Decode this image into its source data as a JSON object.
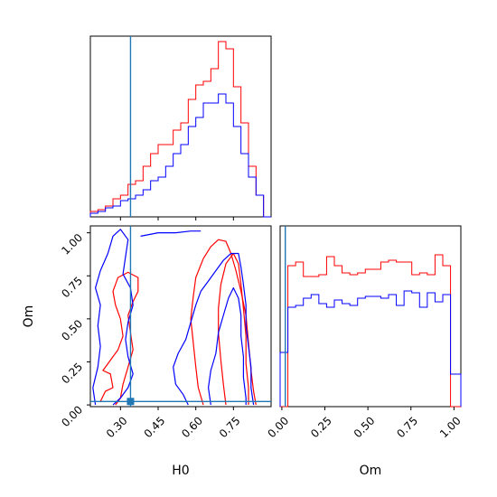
{
  "chart_data": {
    "type": "corner",
    "truth": {
      "H0": 0.34,
      "Om": 0.02
    },
    "parameters": [
      {
        "key": "H0",
        "label": "H0",
        "range": [
          0.18,
          0.9
        ],
        "ticks": [
          "0.30",
          "0.45",
          "0.60",
          "0.75"
        ],
        "tick_values": [
          0.3,
          0.45,
          0.6,
          0.75
        ]
      },
      {
        "key": "Om",
        "label": "Om",
        "range": [
          -0.01,
          1.04
        ],
        "ticks": [
          "0.00",
          "0.25",
          "0.50",
          "0.75",
          "1.00"
        ],
        "tick_values": [
          0.0,
          0.25,
          0.5,
          0.75,
          1.0
        ]
      }
    ],
    "hist_H0": {
      "bin_edges": [
        0.18,
        0.21,
        0.24,
        0.27,
        0.3,
        0.33,
        0.36,
        0.39,
        0.42,
        0.45,
        0.48,
        0.51,
        0.54,
        0.57,
        0.6,
        0.63,
        0.66,
        0.69,
        0.72,
        0.75,
        0.78,
        0.81,
        0.84,
        0.87,
        0.9
      ],
      "series": [
        {
          "color": "#ff0000",
          "values": [
            0.03,
            0.04,
            0.06,
            0.1,
            0.12,
            0.18,
            0.2,
            0.28,
            0.35,
            0.4,
            0.4,
            0.48,
            0.52,
            0.65,
            0.73,
            0.75,
            0.82,
            0.97,
            0.93,
            0.72,
            0.52,
            0.28,
            0.12,
            0.0
          ]
        },
        {
          "color": "#0000ff",
          "values": [
            0.02,
            0.03,
            0.05,
            0.06,
            0.09,
            0.1,
            0.12,
            0.15,
            0.2,
            0.22,
            0.28,
            0.35,
            0.4,
            0.5,
            0.55,
            0.63,
            0.63,
            0.68,
            0.63,
            0.5,
            0.35,
            0.22,
            0.12,
            0.0
          ]
        }
      ]
    },
    "hist_Om": {
      "bin_edges": [
        -0.01,
        0.035,
        0.08,
        0.125,
        0.17,
        0.215,
        0.26,
        0.305,
        0.35,
        0.395,
        0.44,
        0.485,
        0.53,
        0.575,
        0.62,
        0.665,
        0.71,
        0.755,
        0.8,
        0.845,
        0.89,
        0.935,
        0.98,
        1.04
      ],
      "series": [
        {
          "color": "#ff0000",
          "values": [
            0.0,
            0.78,
            0.8,
            0.72,
            0.72,
            0.73,
            0.83,
            0.78,
            0.74,
            0.73,
            0.74,
            0.76,
            0.76,
            0.8,
            0.81,
            0.8,
            0.8,
            0.73,
            0.74,
            0.73,
            0.84,
            0.78,
            0.0
          ]
        },
        {
          "color": "#0000ff",
          "values": [
            0.3,
            0.55,
            0.56,
            0.6,
            0.62,
            0.57,
            0.55,
            0.59,
            0.57,
            0.56,
            0.6,
            0.61,
            0.61,
            0.6,
            0.62,
            0.56,
            0.64,
            0.63,
            0.55,
            0.63,
            0.58,
            0.62,
            0.18
          ]
        }
      ]
    },
    "contours": [
      {
        "color": "#ff0000",
        "level": "outer",
        "points": [
          [
            0.63,
            0.0
          ],
          [
            0.61,
            0.1
          ],
          [
            0.6,
            0.22
          ],
          [
            0.59,
            0.36
          ],
          [
            0.58,
            0.5
          ],
          [
            0.59,
            0.63
          ],
          [
            0.6,
            0.74
          ],
          [
            0.63,
            0.85
          ],
          [
            0.66,
            0.92
          ],
          [
            0.69,
            0.96
          ],
          [
            0.72,
            0.95
          ],
          [
            0.74,
            0.88
          ],
          [
            0.76,
            0.78
          ],
          [
            0.78,
            0.66
          ],
          [
            0.8,
            0.52
          ],
          [
            0.81,
            0.36
          ],
          [
            0.82,
            0.2
          ],
          [
            0.83,
            0.08
          ],
          [
            0.84,
            0.0
          ]
        ]
      },
      {
        "color": "#ff0000",
        "level": "inner",
        "points": [
          [
            0.72,
            0.0
          ],
          [
            0.71,
            0.12
          ],
          [
            0.7,
            0.26
          ],
          [
            0.69,
            0.42
          ],
          [
            0.69,
            0.56
          ],
          [
            0.7,
            0.7
          ],
          [
            0.72,
            0.82
          ],
          [
            0.75,
            0.88
          ],
          [
            0.77,
            0.82
          ],
          [
            0.78,
            0.7
          ],
          [
            0.79,
            0.56
          ],
          [
            0.8,
            0.4
          ],
          [
            0.8,
            0.24
          ],
          [
            0.81,
            0.1
          ],
          [
            0.81,
            0.0
          ]
        ]
      },
      {
        "color": "#ff0000",
        "level": "left",
        "points": [
          [
            0.22,
            0.02
          ],
          [
            0.24,
            0.08
          ],
          [
            0.27,
            0.1
          ],
          [
            0.26,
            0.18
          ],
          [
            0.23,
            0.2
          ],
          [
            0.26,
            0.26
          ],
          [
            0.29,
            0.32
          ],
          [
            0.31,
            0.4
          ],
          [
            0.3,
            0.5
          ],
          [
            0.28,
            0.58
          ],
          [
            0.27,
            0.66
          ],
          [
            0.29,
            0.74
          ],
          [
            0.33,
            0.77
          ],
          [
            0.37,
            0.74
          ],
          [
            0.37,
            0.66
          ],
          [
            0.35,
            0.6
          ],
          [
            0.33,
            0.52
          ],
          [
            0.34,
            0.42
          ],
          [
            0.35,
            0.32
          ],
          [
            0.33,
            0.22
          ],
          [
            0.31,
            0.12
          ],
          [
            0.3,
            0.04
          ],
          [
            0.28,
            0.0
          ]
        ]
      },
      {
        "color": "#0000ff",
        "level": "outer",
        "points": [
          [
            0.57,
            0.0
          ],
          [
            0.55,
            0.06
          ],
          [
            0.52,
            0.12
          ],
          [
            0.51,
            0.22
          ],
          [
            0.53,
            0.3
          ],
          [
            0.56,
            0.38
          ],
          [
            0.58,
            0.48
          ],
          [
            0.6,
            0.58
          ],
          [
            0.62,
            0.66
          ],
          [
            0.65,
            0.72
          ],
          [
            0.68,
            0.78
          ],
          [
            0.71,
            0.84
          ],
          [
            0.74,
            0.88
          ],
          [
            0.77,
            0.88
          ],
          [
            0.78,
            0.8
          ],
          [
            0.79,
            0.7
          ],
          [
            0.8,
            0.58
          ],
          [
            0.8,
            0.46
          ],
          [
            0.81,
            0.34
          ],
          [
            0.82,
            0.22
          ],
          [
            0.82,
            0.1
          ],
          [
            0.83,
            0.0
          ]
        ]
      },
      {
        "color": "#0000ff",
        "level": "inner",
        "points": [
          [
            0.66,
            0.0
          ],
          [
            0.65,
            0.1
          ],
          [
            0.66,
            0.2
          ],
          [
            0.68,
            0.3
          ],
          [
            0.69,
            0.42
          ],
          [
            0.71,
            0.52
          ],
          [
            0.73,
            0.62
          ],
          [
            0.75,
            0.68
          ],
          [
            0.77,
            0.62
          ],
          [
            0.78,
            0.52
          ],
          [
            0.78,
            0.4
          ],
          [
            0.79,
            0.28
          ],
          [
            0.79,
            0.16
          ],
          [
            0.8,
            0.04
          ],
          [
            0.8,
            0.0
          ]
        ]
      },
      {
        "color": "#0000ff",
        "level": "left",
        "points": [
          [
            0.2,
            0.0
          ],
          [
            0.19,
            0.1
          ],
          [
            0.21,
            0.22
          ],
          [
            0.22,
            0.34
          ],
          [
            0.21,
            0.46
          ],
          [
            0.22,
            0.58
          ],
          [
            0.2,
            0.68
          ],
          [
            0.22,
            0.78
          ],
          [
            0.25,
            0.88
          ],
          [
            0.27,
            0.98
          ],
          [
            0.3,
            1.02
          ],
          [
            0.33,
            0.96
          ],
          [
            0.32,
            0.86
          ],
          [
            0.31,
            0.76
          ],
          [
            0.34,
            0.68
          ],
          [
            0.35,
            0.58
          ],
          [
            0.33,
            0.48
          ],
          [
            0.32,
            0.38
          ],
          [
            0.33,
            0.28
          ],
          [
            0.35,
            0.18
          ],
          [
            0.33,
            0.1
          ],
          [
            0.3,
            0.04
          ],
          [
            0.27,
            0.0
          ]
        ]
      },
      {
        "color": "#0000ff",
        "level": "top",
        "points": [
          [
            0.38,
            0.98
          ],
          [
            0.45,
            1.0
          ],
          [
            0.52,
            1.0
          ],
          [
            0.58,
            1.01
          ],
          [
            0.62,
            1.01
          ]
        ]
      }
    ]
  }
}
